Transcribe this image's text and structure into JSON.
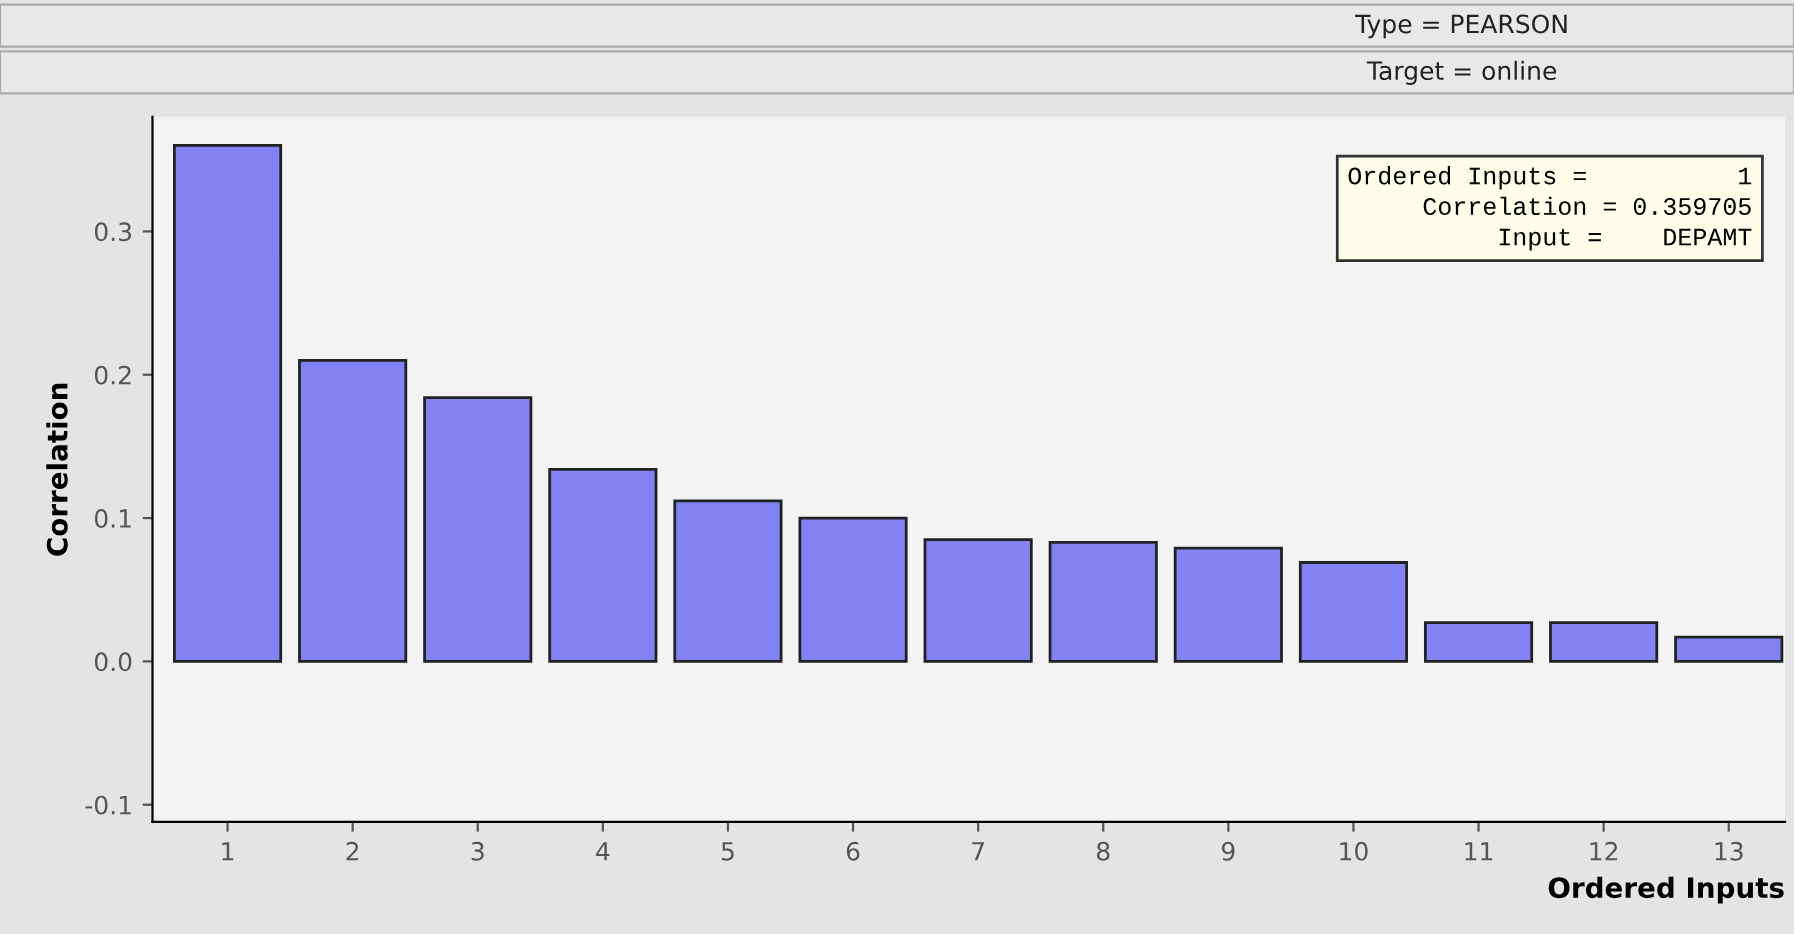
{
  "chart_data": {
    "type": "bar",
    "title": "Type = PEARSON",
    "subtitle": "Target = online",
    "xlabel": "Ordered Inputs",
    "ylabel": "Correlation",
    "categories": [
      "1",
      "2",
      "3",
      "4",
      "5",
      "6",
      "7",
      "8",
      "9",
      "10",
      "11",
      "12",
      "13"
    ],
    "values": [
      0.36,
      0.21,
      0.184,
      0.134,
      0.112,
      0.1,
      0.085,
      0.083,
      0.079,
      0.069,
      0.027,
      0.027,
      0.017
    ],
    "color": "#8282f2",
    "ylim": [
      -0.112,
      0.38
    ],
    "yticks": [
      -0.1,
      {
        "value": 0,
        "label": "0.0"
      },
      0.1,
      0.2,
      0.3
    ],
    "annotations": [
      "Ordered Inputs =          1",
      "Correlation = 0.359705",
      "Input =    DEPAMT"
    ],
    "grid": false,
    "legend": false
  }
}
